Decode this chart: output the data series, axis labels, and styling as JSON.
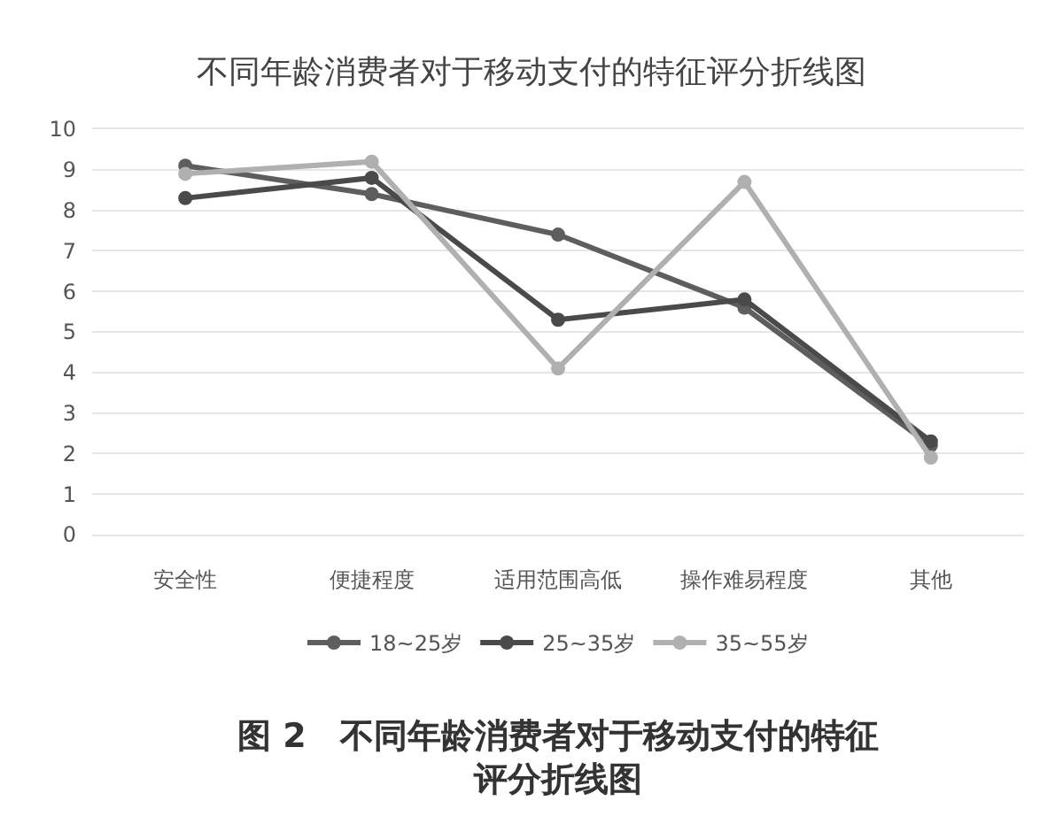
{
  "chart_data": {
    "type": "line",
    "title": "不同年龄消费者对于移动支付的特征评分折线图",
    "categories": [
      "安全性",
      "便捷程度",
      "适用范围高低",
      "操作难易程度",
      "其他"
    ],
    "series": [
      {
        "name": "18~25岁",
        "color": "#5e5e5e",
        "values": [
          9.1,
          8.4,
          7.4,
          5.6,
          2.2
        ]
      },
      {
        "name": "25~35岁",
        "color": "#4a4a4a",
        "values": [
          8.3,
          8.8,
          5.3,
          5.8,
          2.3
        ]
      },
      {
        "name": "35~55岁",
        "color": "#b0b0b0",
        "values": [
          8.9,
          9.2,
          4.1,
          8.7,
          1.9
        ]
      }
    ],
    "ylim": [
      0,
      10
    ],
    "yticks": [
      0,
      1,
      2,
      3,
      4,
      5,
      6,
      7,
      8,
      9,
      10
    ],
    "grid": "y",
    "legend": "bottom",
    "marker": "circle",
    "line_style": "solid",
    "annotations": [
      "图 2　不同年龄消费者对于移动支付的特征评分折线图"
    ]
  }
}
